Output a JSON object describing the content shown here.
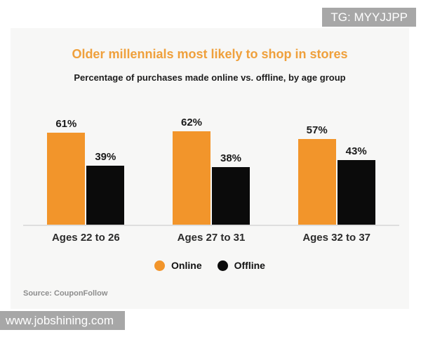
{
  "overlays": {
    "top_right_badge": "TG: MYYJJPP",
    "bottom_left_badge": "www.jobshining.com"
  },
  "chart_data": {
    "type": "bar",
    "title": "Older millennials most likely to shop in stores",
    "subtitle": "Percentage of purchases made online vs. offline, by age group",
    "categories": [
      "Ages 22 to 26",
      "Ages 27 to 31",
      "Ages 32 to 37"
    ],
    "series": [
      {
        "name": "Online",
        "color": "#F2952B",
        "values": [
          61,
          62,
          57
        ]
      },
      {
        "name": "Offline",
        "color": "#0B0B0B",
        "values": [
          39,
          38,
          43
        ]
      }
    ],
    "value_suffix": "%",
    "ylim": [
      0,
      70
    ],
    "grid": false,
    "legend_position": "bottom",
    "title_color": "#EFA03C",
    "source_note": "Source: CouponFollow"
  }
}
